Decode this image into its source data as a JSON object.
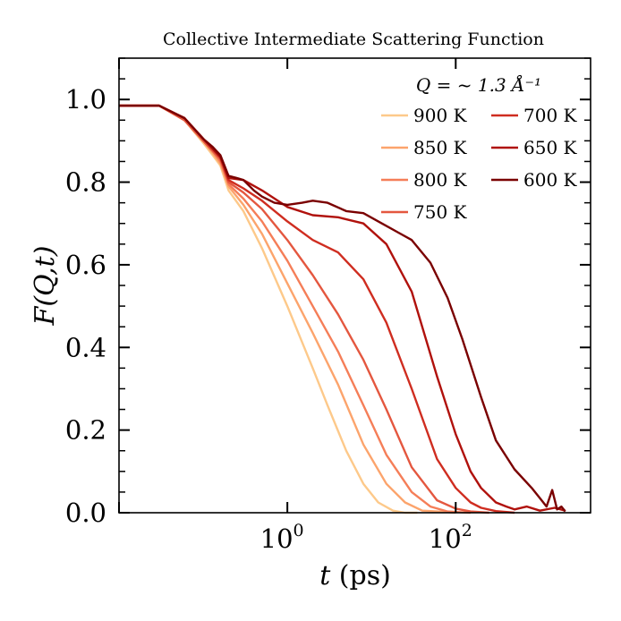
{
  "chart_data": {
    "type": "line",
    "title": "Collective Intermediate Scattering Function",
    "xlabel_var": "t",
    "xlabel_unit": "(ps)",
    "ylabel": "F(Q,t)",
    "xscale": "log",
    "xlim": [
      0.01,
      4000
    ],
    "ylim": [
      0,
      1.1
    ],
    "x_tick_labels": [
      {
        "base": "10",
        "exp": "0",
        "value": 1
      },
      {
        "base": "10",
        "exp": "2",
        "value": 100
      }
    ],
    "y_ticks": [
      0.0,
      0.2,
      0.4,
      0.6,
      0.8,
      1.0
    ],
    "y_tick_labels": [
      "0.0",
      "0.2",
      "0.4",
      "0.6",
      "0.8",
      "1.0"
    ],
    "grid": false,
    "legend_title": "Q = ~ 1.3 Å⁻¹",
    "legend_placement": "top-right",
    "series": [
      {
        "name": "900 K",
        "color": "#fdc98a",
        "x": [
          0.01,
          0.03,
          0.06,
          0.1,
          0.13,
          0.16,
          0.2,
          0.3,
          0.5,
          1,
          2,
          3,
          5,
          8,
          12,
          18,
          25,
          35
        ],
        "y": [
          0.985,
          0.985,
          0.95,
          0.895,
          0.865,
          0.84,
          0.78,
          0.73,
          0.64,
          0.5,
          0.35,
          0.26,
          0.15,
          0.07,
          0.025,
          0.005,
          0.0,
          0.0
        ]
      },
      {
        "name": "850 K",
        "color": "#fca46c",
        "x": [
          0.01,
          0.03,
          0.06,
          0.1,
          0.13,
          0.16,
          0.2,
          0.3,
          0.5,
          1,
          2,
          4,
          8,
          15,
          25,
          40,
          60,
          100
        ],
        "y": [
          0.985,
          0.985,
          0.95,
          0.9,
          0.87,
          0.845,
          0.79,
          0.745,
          0.675,
          0.555,
          0.435,
          0.31,
          0.165,
          0.07,
          0.025,
          0.005,
          0.003,
          0.0
        ]
      },
      {
        "name": "800 K",
        "color": "#f57e58",
        "x": [
          0.01,
          0.03,
          0.06,
          0.1,
          0.13,
          0.16,
          0.2,
          0.3,
          0.5,
          1,
          2,
          4,
          8,
          15,
          30,
          50,
          80,
          150
        ],
        "y": [
          0.985,
          0.985,
          0.95,
          0.9,
          0.875,
          0.85,
          0.795,
          0.76,
          0.705,
          0.61,
          0.5,
          0.39,
          0.26,
          0.14,
          0.05,
          0.015,
          0.003,
          0.0
        ]
      },
      {
        "name": "750 K",
        "color": "#e4573f",
        "x": [
          0.01,
          0.03,
          0.06,
          0.1,
          0.13,
          0.16,
          0.2,
          0.3,
          0.5,
          1,
          2,
          4,
          8,
          15,
          30,
          60,
          100,
          150,
          250
        ],
        "y": [
          0.985,
          0.985,
          0.95,
          0.9,
          0.875,
          0.855,
          0.8,
          0.775,
          0.735,
          0.66,
          0.575,
          0.48,
          0.37,
          0.25,
          0.11,
          0.03,
          0.01,
          0.003,
          0.0
        ]
      },
      {
        "name": "700 K",
        "color": "#cf2d20",
        "x": [
          0.01,
          0.03,
          0.06,
          0.1,
          0.13,
          0.16,
          0.2,
          0.3,
          0.5,
          1,
          2,
          4,
          8,
          15,
          30,
          60,
          100,
          150,
          200,
          300,
          500
        ],
        "y": [
          0.985,
          0.985,
          0.955,
          0.905,
          0.88,
          0.86,
          0.805,
          0.785,
          0.755,
          0.705,
          0.66,
          0.63,
          0.565,
          0.46,
          0.3,
          0.13,
          0.06,
          0.025,
          0.012,
          0.004,
          0.0
        ]
      },
      {
        "name": "650 K",
        "color": "#b0110c",
        "x": [
          0.01,
          0.03,
          0.06,
          0.1,
          0.13,
          0.16,
          0.2,
          0.3,
          0.5,
          1,
          2,
          4,
          8,
          15,
          30,
          60,
          100,
          150,
          200,
          300,
          400,
          500,
          700,
          1000,
          1500,
          2000
        ],
        "y": [
          0.985,
          0.985,
          0.955,
          0.905,
          0.88,
          0.86,
          0.81,
          0.805,
          0.78,
          0.74,
          0.72,
          0.715,
          0.7,
          0.65,
          0.535,
          0.33,
          0.19,
          0.1,
          0.06,
          0.025,
          0.015,
          0.008,
          0.015,
          0.005,
          0.012,
          0.005
        ]
      },
      {
        "name": "600 K",
        "color": "#7a0000",
        "x": [
          0.01,
          0.03,
          0.06,
          0.1,
          0.13,
          0.16,
          0.2,
          0.25,
          0.3,
          0.4,
          0.5,
          0.7,
          1,
          1.5,
          2,
          3,
          5,
          8,
          12,
          20,
          30,
          50,
          80,
          120,
          200,
          300,
          500,
          800,
          1000,
          1200,
          1400,
          1600,
          1800,
          2000
        ],
        "y": [
          0.985,
          0.985,
          0.955,
          0.905,
          0.885,
          0.865,
          0.815,
          0.81,
          0.805,
          0.78,
          0.765,
          0.75,
          0.745,
          0.75,
          0.755,
          0.75,
          0.73,
          0.725,
          0.705,
          0.68,
          0.66,
          0.605,
          0.52,
          0.42,
          0.28,
          0.175,
          0.105,
          0.06,
          0.035,
          0.015,
          0.055,
          0.008,
          0.015,
          0.003
        ]
      }
    ]
  }
}
